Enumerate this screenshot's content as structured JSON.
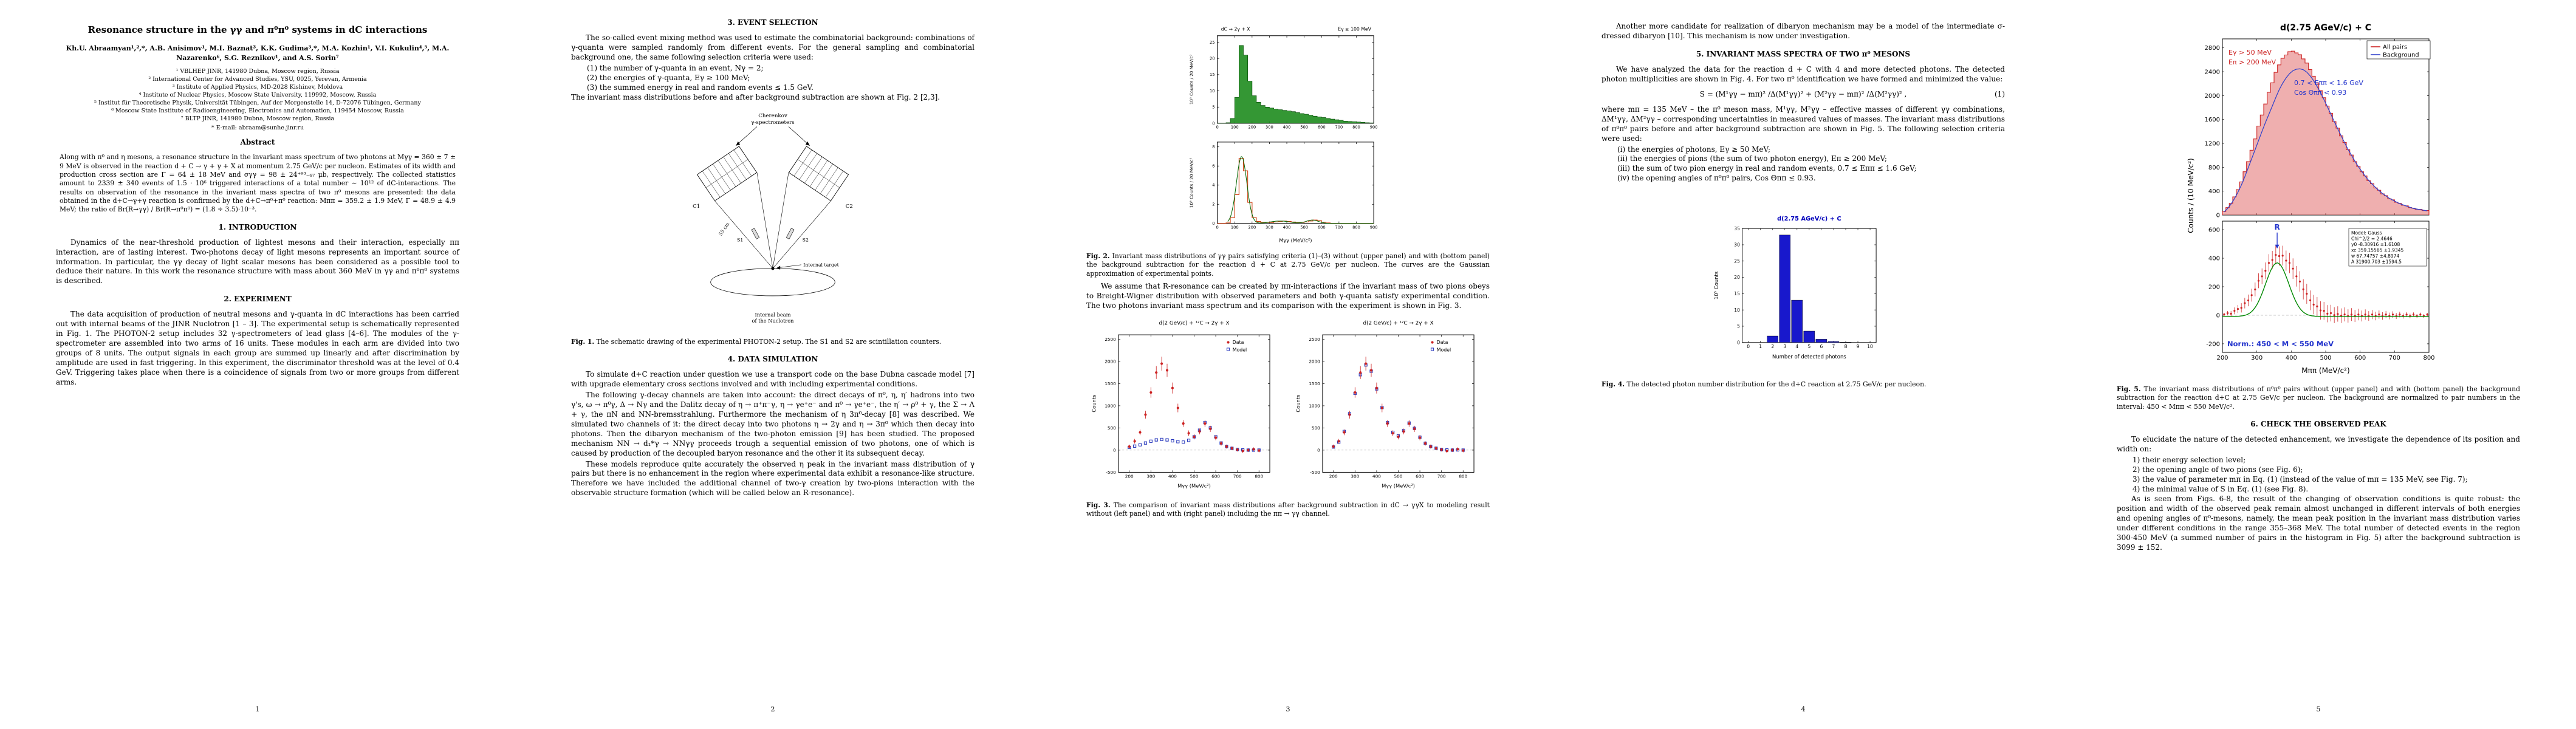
{
  "p1": {
    "page_num": "1",
    "title": "Resonance structure in the γγ and π⁰π⁰ systems in dC interactions",
    "authors": "Kh.U. Abraamyan¹,²,*, A.B. Anisimov¹, M.I. Baznat³, K.K. Gudima³,*, M.A. Kozhin¹, V.I. Kukulin⁴,⁵, M.A. Nazarenko⁶, S.G. Reznikov¹, and A.S. Sorin⁷",
    "affiliations": [
      "¹ VBLHEP JINR, 141980 Dubna, Moscow region, Russia",
      "² International Center for Advanced Studies, YSU, 0025, Yerevan, Armenia",
      "³ Institute of Applied Physics, MD-2028 Kishinev, Moldova",
      "⁴ Institute of Nuclear Physics, Moscow State University, 119992, Moscow, Russia",
      "⁵ Institut für Theoretische Physik, Universität Tübingen, Auf der Morgenstelle 14, D-72076 Tübingen, Germany",
      "⁶ Moscow State Institute of Radioengineering, Electronics and Automation, 119454 Moscow, Russia",
      "⁷ BLTP JINR, 141980 Dubna, Moscow region, Russia"
    ],
    "email": "* E-mail: abraam@sunhe.jinr.ru",
    "abstract_heading": "Abstract",
    "abstract": "Along with π⁰ and η mesons, a resonance structure in the invariant mass spectrum of two photons at Mγγ = 360 ± 7 ± 9 MeV is observed in the reaction d + C → γ + γ + X at momentum 2.75 GeV/c per nucleon. Estimates of its width and production cross section are Γ = 64 ± 18 MeV and σγγ = 98 ± 24⁺⁹³₋₆₇ μb, respectively. The collected statistics amount to 2339 ± 340 events of 1.5 · 10⁶ triggered interactions of a total number ∼ 10¹² of dC-interactions. The results on observation of the resonance in the invariant mass spectra of two π⁰ mesons are presented: the data obtained in the d+C→γ+γ reaction is confirmed by the d+C→π⁰+π⁰ reaction: Mππ = 359.2 ± 1.9 MeV, Γ = 48.9 ± 4.9 MeV; the ratio of Br(R→γγ) / Br(R→π⁰π⁰) = (1.8 ÷ 3.5)·10⁻³.",
    "s1_heading": "1. INTRODUCTION",
    "s1_text": "Dynamics of the near-threshold production of lightest mesons and their interaction, especially ππ interaction, are of lasting interest. Two-photons decay of light mesons represents an important source of information. In particular, the γγ decay of light scalar mesons has been considered as a possible tool to deduce their nature. In this work the resonance structure with mass about 360 MeV in γγ and π⁰π⁰ systems is described.",
    "s2_heading": "2. EXPERIMENT",
    "s2_text": "The data acquisition of production of neutral mesons and γ-quanta in dC interactions has been carried out with internal beams of the JINR Nuclotron [1 – 3]. The experimental setup is schematically represented in Fig. 1. The PHOTON-2 setup includes 32 γ-spectrometers of lead glass [4–6]. The modules of the γ-spectrometer are assembled into two arms of 16 units. These modules in each arm are divided into two groups of 8 units. The output signals in each group are summed up linearly and after discrimination by amplitude are used in fast triggering. In this experiment, the discriminator threshold was at the level of 0.4 GeV. Triggering takes place when there is a coincidence of signals from two or more groups from different arms."
  },
  "p2": {
    "page_num": "2",
    "s3_heading": "3. EVENT SELECTION",
    "s3_text1": "The so-called event mixing method was used to estimate the combinatorial background: combinations of γ-quanta were sampled randomly from different events. For the general sampling and combinatorial background one, the same following selection criteria were used:",
    "s3_items": [
      "(1) the number of γ-quanta in an event, Nγ = 2;",
      "(2) the energies of γ-quanta, Eγ ≥ 100 MeV;",
      "(3) the summed energy in real and random events ≤ 1.5 GeV."
    ],
    "s3_text2": "The invariant mass distributions before and after background subtraction are shown at Fig. 2 [2,3].",
    "fig1": {
      "top1": "Cherenkov",
      "top2": "γ-spectrometers",
      "c1": "C1",
      "c2": "C2",
      "s1": "S1",
      "s2": "S2",
      "dist": "55 cm",
      "target": "Internal target",
      "beam1": "Internal beam",
      "beam2": "of the Nuclotron"
    },
    "fig1_label": "Fig. 1.",
    "fig1_caption": "The schematic drawing of the experimental PHOTON-2 setup. The S1 and S2 are scintillation counters.",
    "s4_heading": "4. DATA SIMULATION",
    "s4_text1": "To simulate d+C reaction under question we use a transport code on the base Dubna cascade model [7] with upgrade elementary cross sections involved and with including experimental conditions.",
    "s4_text2": "The following γ-decay channels are taken into account: the direct decays of π⁰, η, η′ hadrons into two γ's, ω → π⁰γ, Δ → Nγ and the Dalitz decay of η → π⁺π⁻γ, η → γe⁺e⁻ and π⁰ → γe⁺e⁻, the η′ → ρ⁰ + γ, the Σ → Λ + γ, the πN and NN-bremsstrahlung. Furthermore the mechanism of η 3π⁰-decay [8] was described. We simulated two channels of it: the direct decay into two photons η → 2γ and η → 3π⁰ which then decay into photons. Then the dibaryon mechanism of the two-photon emission [9] has been studied. The proposed mechanism NN → d₁*γ → NNγγ proceeds trough a sequential emission of two photons, one of which is caused by production of the decoupled baryon resonance and the other it its subsequent decay.",
    "s4_text3": "These models reproduce quite accurately the observed η peak in the invariant mass distribution of γ pairs but there is no enhancement in the region where experimental data exhibit a resonance-like structure. Therefore we have included the additional channel of two-γ creation by two-pions interaction with the observable structure formation (which will be called below an R-resonance)."
  },
  "p3": {
    "page_num": "3",
    "fig2_label": "Fig. 2.",
    "fig2_caption": "Invariant mass distributions of γγ pairs satisfying criteria (1)–(3) without (upper panel) and with (bottom panel) the background subtraction for the reaction d + C at 2.75 GeV/c per nucleon. The curves are the Gaussian approximation of experimental points.",
    "para1": "We assume that R-resonance can be created by ππ-interactions if the invariant mass of two pions obeys to Breight-Wigner distribution with observed parameters and both γ-quanta satisfy experimental condition. The two photons invariant mass spectrum and its comparison with the experiment is shown in Fig. 3.",
    "fig3_label": "Fig. 3.",
    "fig3_caption": "The comparison of invariant mass distributions after background subtraction in dC → γγX to modeling result without (left panel) and with (right panel) including the ππ → γγ channel."
  },
  "p4": {
    "page_num": "4",
    "para1": "Another more candidate for realization of dibaryon mechanism may be a model of the intermediate σ-dressed dibaryon [10]. This mechanism is now under investigation.",
    "s5_heading": "5. INVARIANT MASS SPECTRA OF TWO π⁰ MESONS",
    "s5_text1": "We have analyzed the data for the reaction d + C with 4 and more detected photons. The detected photon multiplicities are shown in Fig. 4. For two π⁰ identification we have formed and minimized the value:",
    "equation": "S = (M¹γγ − mπ)² /Δ(M¹γγ)² + (M²γγ − mπ)² /Δ(M²γγ)² ,",
    "eq_no": "(1)",
    "s5_text2": "where mπ = 135 MeV – the π⁰ meson mass, M¹γγ, M²γγ – effective masses of different γγ combinations, ΔM¹γγ, ΔM²γγ – corresponding uncertainties in measured values of masses. The invariant mass distributions of π⁰π⁰ pairs before and after background subtraction are shown in Fig. 5. The following selection criteria were used:",
    "criteria": [
      "(i) the energies of photons, Eγ ≥ 50 MeV;",
      "(ii) the energies of pions (the sum of two photon energy), Eπ ≥ 200 MeV;",
      "(iii) the sum of two pion energy in real and random events, 0.7 ≤ Eππ ≤ 1.6 GeV;",
      "(iv) the opening angles of π⁰π⁰ pairs, Cos Θππ ≤ 0.93."
    ],
    "fig4_label": "Fig. 4.",
    "fig4_caption": "The detected photon number distribution for the d+C reaction at 2.75 GeV/c per nucleon."
  },
  "p5": {
    "page_num": "5",
    "fig5_label": "Fig. 5.",
    "fig5_caption": "The invariant mass distributions of π⁰π⁰ pairs without (upper panel) and with (bottom panel) the background subtraction for the reaction d+C at 2.75 GeV/c per nucleon. The background are normalized to pair numbers in the interval: 450 < Mππ < 550 MeV/c².",
    "s6_heading": "6. CHECK THE OBSERVED PEAK",
    "s6_text1": "To elucidate the nature of the detected enhancement, we investigate the dependence of its position and width on:",
    "s6_items": [
      "1) their energy selection level;",
      "2) the opening angle of two pions (see Fig. 6);",
      "3) the value of parameter mπ in Eq. (1) (instead of the value of mπ = 135 MeV, see Fig. 7);",
      "4) the minimal value of S in Eq. (1) (see Fig. 8)."
    ],
    "s6_text2": "As is seen from Figs. 6-8, the result of the changing of observation conditions is quite robust: the position and width of the observed peak remain almost unchanged in different intervals of both energies and opening angles of π⁰-mesons, namely, the mean peak position in the invariant mass distribution varies under different conditions in the range 355–368 MeV. The total number of detected events in the region 300-450 MeV (a summed number of pairs in the histogram in Fig. 5) after the background subtraction is 3099 ± 152."
  },
  "chart_data": [
    {
      "id": "fig2",
      "type": "bar",
      "xlim": [
        0,
        900
      ],
      "xticks": [
        0,
        100,
        200,
        300,
        400,
        500,
        600,
        700,
        800,
        900
      ],
      "xlabel": "Mγγ (MeV/c²)",
      "annotation_left": "dC → 2γ + X",
      "annotation_right": "Eγ ≥ 100 MeV",
      "panels": [
        {
          "name": "without background subtraction",
          "x0": 0,
          "dx": 25,
          "values": [
            0,
            0,
            0.2,
            1.5,
            8,
            24,
            21,
            13,
            8.5,
            6.5,
            5.5,
            5,
            4.7,
            4.4,
            4.2,
            4,
            3.8,
            3.6,
            3.3,
            3,
            2.8,
            2.5,
            2.2,
            2,
            1.8,
            1.5,
            1.3,
            1.1,
            0.9,
            0.7,
            0.6,
            0.5,
            0.4,
            0.3,
            0.2,
            0.15
          ],
          "ylim": [
            0,
            27
          ],
          "yticks": [
            0,
            5,
            10,
            15,
            20,
            25
          ],
          "ylabel": "10³ Counts / 20 MeV/c²",
          "color": "#1e8c1e"
        },
        {
          "name": "with background subtraction",
          "x0": 0,
          "dx": 25,
          "values": [
            0,
            0,
            0.05,
            0.6,
            3,
            6.8,
            5.5,
            2.2,
            0.6,
            0.2,
            0.1,
            0.1,
            0.1,
            0.15,
            0.2,
            0.25,
            0.2,
            0.15,
            0.1,
            0.1,
            0.15,
            0.25,
            0.35,
            0.28,
            0.12,
            0.05,
            0,
            0,
            0,
            0,
            0,
            0,
            0,
            0,
            0,
            0
          ],
          "ylim": [
            0,
            8.5
          ],
          "yticks": [
            0,
            2,
            4,
            6,
            8
          ],
          "ylabel": "10³ Counts / 20 MeV/c²",
          "color": "#cc3300",
          "fit": [
            {
              "a": 7.0,
              "xc": 140,
              "s": 30
            },
            {
              "a": 0.25,
              "xc": 360,
              "s": 55
            },
            {
              "a": 0.35,
              "xc": 547,
              "s": 35
            }
          ]
        }
      ]
    },
    {
      "id": "fig3",
      "type": "scatter",
      "title": "d(2 GeV/c) + ¹²C → 2γ + X",
      "x": [
        200,
        225,
        250,
        275,
        300,
        325,
        350,
        375,
        400,
        425,
        450,
        475,
        500,
        525,
        550,
        575,
        600,
        625,
        650,
        675,
        700,
        725,
        750,
        775,
        800
      ],
      "data": [
        80,
        200,
        400,
        800,
        1300,
        1750,
        1950,
        1800,
        1400,
        950,
        600,
        380,
        300,
        420,
        600,
        480,
        280,
        150,
        80,
        40,
        10,
        -20,
        0,
        20,
        -10
      ],
      "model_left": [
        60,
        90,
        120,
        160,
        200,
        230,
        240,
        230,
        210,
        190,
        180,
        220,
        300,
        450,
        620,
        500,
        300,
        160,
        80,
        40,
        15,
        5,
        0,
        0,
        0
      ],
      "model_right": [
        70,
        180,
        420,
        820,
        1280,
        1700,
        1920,
        1780,
        1380,
        960,
        620,
        400,
        320,
        440,
        610,
        490,
        290,
        155,
        82,
        42,
        12,
        4,
        0,
        5,
        0
      ],
      "xlim": [
        150,
        850
      ],
      "ylim": [
        -500,
        2600
      ],
      "xticks": [
        200,
        300,
        400,
        500,
        600,
        700,
        800
      ],
      "yticks": [
        -500,
        0,
        500,
        1000,
        1500,
        2000,
        2500
      ],
      "xlabel": "Mγγ (MeV/c²)",
      "ylabel": "Counts",
      "legend": [
        "Data",
        "Model"
      ],
      "colors": {
        "data": "#cc2222",
        "model": "#2233bb"
      }
    },
    {
      "id": "fig4",
      "type": "bar",
      "title": "d(2.75 AGeV/c) + C",
      "categories": [
        0,
        1,
        2,
        3,
        4,
        5,
        6,
        7,
        8,
        9,
        10
      ],
      "values": [
        0,
        0,
        2,
        33,
        13,
        3.5,
        1,
        0.3,
        0.1,
        0,
        0
      ],
      "xlabel": "Number of detected photons",
      "ylabel": "10⁵ Counts",
      "ylim": [
        0,
        35
      ],
      "yticks": [
        0,
        5,
        10,
        15,
        20,
        25,
        30,
        35
      ],
      "color": "#1818cc"
    },
    {
      "id": "fig5",
      "type": "histogram",
      "title": "d(2.75 AGeV/c) + C",
      "x0": 200,
      "dx": 10,
      "all_pairs": [
        60,
        125,
        195,
        305,
        425,
        555,
        725,
        895,
        1085,
        1275,
        1490,
        1675,
        1860,
        2055,
        2215,
        2390,
        2515,
        2625,
        2680,
        2735,
        2745,
        2715,
        2685,
        2615,
        2545,
        2435,
        2325,
        2215,
        2085,
        1965,
        1825,
        1705,
        1565,
        1455,
        1325,
        1215,
        1095,
        1005,
        895,
        815,
        725,
        655,
        575,
        525,
        455,
        415,
        355,
        325,
        275,
        255,
        215,
        195,
        165,
        155,
        125,
        115,
        95,
        95,
        75,
        75
      ],
      "background": [
        54,
        110,
        184,
        274,
        381,
        503,
        640,
        791,
        944,
        1094,
        1248,
        1402,
        1548,
        1688,
        1827,
        1967,
        2100,
        2207,
        2297,
        2368,
        2418,
        2442,
        2448,
        2433,
        2394,
        2330,
        2250,
        2153,
        2051,
        1934,
        1814,
        1690,
        1564,
        1446,
        1328,
        1209,
        1100,
        1000,
        900,
        810,
        730,
        650,
        580,
        520,
        460,
        410,
        360,
        320,
        280,
        250,
        220,
        190,
        170,
        150,
        130,
        110,
        100,
        90,
        80,
        70
      ],
      "legend": [
        "All pairs",
        "Background"
      ],
      "annotations_red": [
        "Eγ > 50 MeV",
        "Eπ > 200 MeV"
      ],
      "annotations_blue": [
        "0.7 < Eππ < 1.6 GeV",
        "Cos Θππ < 0.93"
      ],
      "fit": {
        "y0": -8.30916,
        "xc": 359.15565,
        "w": 67.74757,
        "A": 31900.703
      },
      "fit_lines": [
        "Model: Gauss",
        "Chi^2/2 = 2.4646",
        "y0   -8.30916    ±1.6108",
        "xc   359.15565  ±1.9345",
        "w    67.74757    ±4.8974",
        "A    31900.703  ±1594.5"
      ],
      "peak_label": "R",
      "norm_label": "Norm.: 450 < M < 550 MeV",
      "xlabel": "Mππ  (MeV/c²)",
      "ylabel": "Counts / (10 MeV/c²)",
      "xlim": [
        200,
        800
      ],
      "xticks": [
        200,
        300,
        400,
        500,
        600,
        700,
        800
      ],
      "top_ylim": [
        0,
        2950
      ],
      "top_yticks": [
        0,
        400,
        800,
        1200,
        1600,
        2000,
        2400,
        2800
      ],
      "bot_ylim": [
        -260,
        660
      ],
      "bot_yticks": [
        -200,
        0,
        200,
        400,
        600
      ],
      "colors": {
        "pairs": "#cc2222",
        "background": "#3344cc",
        "fit": "#008800"
      }
    }
  ]
}
